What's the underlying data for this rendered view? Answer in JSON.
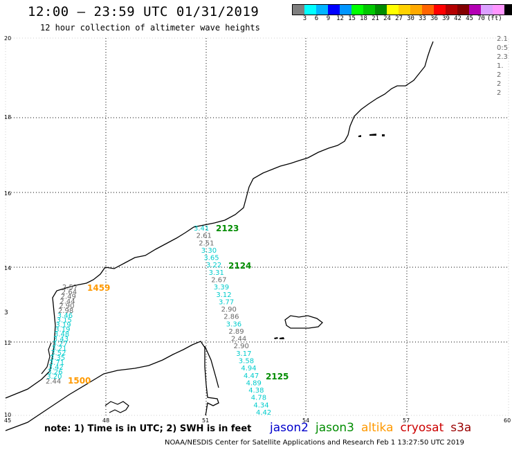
{
  "title": "12:00 – 23:59 UTC 01/31/2019",
  "subtitle": "12 hour collection of altimeter wave heights",
  "scale": {
    "colors": [
      "#7f7f7f",
      "#00ffff",
      "#00b4ff",
      "#0000ff",
      "#0096ff",
      "#00ff00",
      "#00c800",
      "#008c00",
      "#ffff00",
      "#ffd200",
      "#ffaa00",
      "#ff6400",
      "#ff0000",
      "#b40000",
      "#820000",
      "#b400b4",
      "#dca0ff",
      "#ff96ff",
      "#000000"
    ],
    "labels": [
      "3",
      "6",
      "9",
      "12",
      "15",
      "18",
      "21",
      "24",
      "27",
      "30",
      "33",
      "36",
      "39",
      "42",
      "45",
      "70",
      "(ft)"
    ]
  },
  "y_ticks": [
    "20",
    "18",
    "16",
    "14",
    "12",
    "10"
  ],
  "x_ticks": [
    "45",
    "48",
    "51",
    "54",
    "57",
    "60"
  ],
  "left_edge_label": "3",
  "right_column": [
    "2.1",
    "0:5",
    "2.3",
    "1.",
    "2",
    "2",
    "2"
  ],
  "passes": [
    {
      "label": "1459",
      "color": "#ff9900"
    },
    {
      "label": "1500",
      "color": "#ff9900"
    },
    {
      "label": "2123",
      "color": "#008c00"
    },
    {
      "label": "2124",
      "color": "#008c00"
    },
    {
      "label": "2125",
      "color": "#008c00"
    }
  ],
  "track_values_left": [
    {
      "v": "2.57",
      "c": "#666666"
    },
    {
      "v": "2.64",
      "c": "#666666"
    },
    {
      "v": "2.49",
      "c": "#666666"
    },
    {
      "v": "2.44",
      "c": "#666666"
    },
    {
      "v": "2.90",
      "c": "#666666"
    },
    {
      "v": "2.98",
      "c": "#666666"
    },
    {
      "v": "3.46",
      "c": "#00cccc"
    },
    {
      "v": "3.15",
      "c": "#00cccc"
    },
    {
      "v": "3.19",
      "c": "#00cccc"
    },
    {
      "v": "3.19",
      "c": "#00cccc"
    },
    {
      "v": "3.48",
      "c": "#00cccc"
    },
    {
      "v": "3.43",
      "c": "#00cccc"
    },
    {
      "v": "3.27",
      "c": "#00cccc"
    },
    {
      "v": "3.21",
      "c": "#00cccc"
    },
    {
      "v": "3.52",
      "c": "#00cccc"
    },
    {
      "v": "3.35",
      "c": "#00cccc"
    },
    {
      "v": "3.71",
      "c": "#00cccc"
    },
    {
      "v": "3.42",
      "c": "#00cccc"
    },
    {
      "v": "3.26",
      "c": "#00cccc"
    },
    {
      "v": "3.20",
      "c": "#00cccc"
    },
    {
      "v": "2.44",
      "c": "#666666"
    }
  ],
  "track_values_right": [
    {
      "v": "3.41",
      "c": "#00cccc"
    },
    {
      "v": "2.61",
      "c": "#666666"
    },
    {
      "v": "2.51",
      "c": "#666666"
    },
    {
      "v": "3.30",
      "c": "#00cccc"
    },
    {
      "v": "3.65",
      "c": "#00cccc"
    },
    {
      "v": "3.22",
      "c": "#00cccc"
    },
    {
      "v": "3.31",
      "c": "#00cccc"
    },
    {
      "v": "2.67",
      "c": "#666666"
    },
    {
      "v": "3.39",
      "c": "#00cccc"
    },
    {
      "v": "3.12",
      "c": "#00cccc"
    },
    {
      "v": "3.77",
      "c": "#00cccc"
    },
    {
      "v": "2.90",
      "c": "#666666"
    },
    {
      "v": "2.86",
      "c": "#666666"
    },
    {
      "v": "3.36",
      "c": "#00cccc"
    },
    {
      "v": "2.89",
      "c": "#666666"
    },
    {
      "v": "2.44",
      "c": "#666666"
    },
    {
      "v": "2.90",
      "c": "#666666"
    },
    {
      "v": "3.17",
      "c": "#00cccc"
    },
    {
      "v": "3.58",
      "c": "#00cccc"
    },
    {
      "v": "4.94",
      "c": "#00cccc"
    },
    {
      "v": "4.47",
      "c": "#00cccc"
    },
    {
      "v": "4.89",
      "c": "#00cccc"
    },
    {
      "v": "4.38",
      "c": "#00cccc"
    },
    {
      "v": "4.78",
      "c": "#00cccc"
    },
    {
      "v": "4.34",
      "c": "#00cccc"
    },
    {
      "v": "4.42",
      "c": "#00cccc"
    }
  ],
  "note": "note:  1) Time is in UTC;  2) SWH is in feet",
  "legend": [
    {
      "name": "jason2",
      "color": "#0000cc"
    },
    {
      "name": "jason3",
      "color": "#008c00"
    },
    {
      "name": "altika",
      "color": "#ff9900"
    },
    {
      "name": "cryosat",
      "color": "#cc0000"
    },
    {
      "name": "s3a",
      "color": "#990000"
    }
  ],
  "footer": "NOAA/NESDIS Center for Satellite Applications and Research    Feb  1 13:27:50 UTC 2019"
}
